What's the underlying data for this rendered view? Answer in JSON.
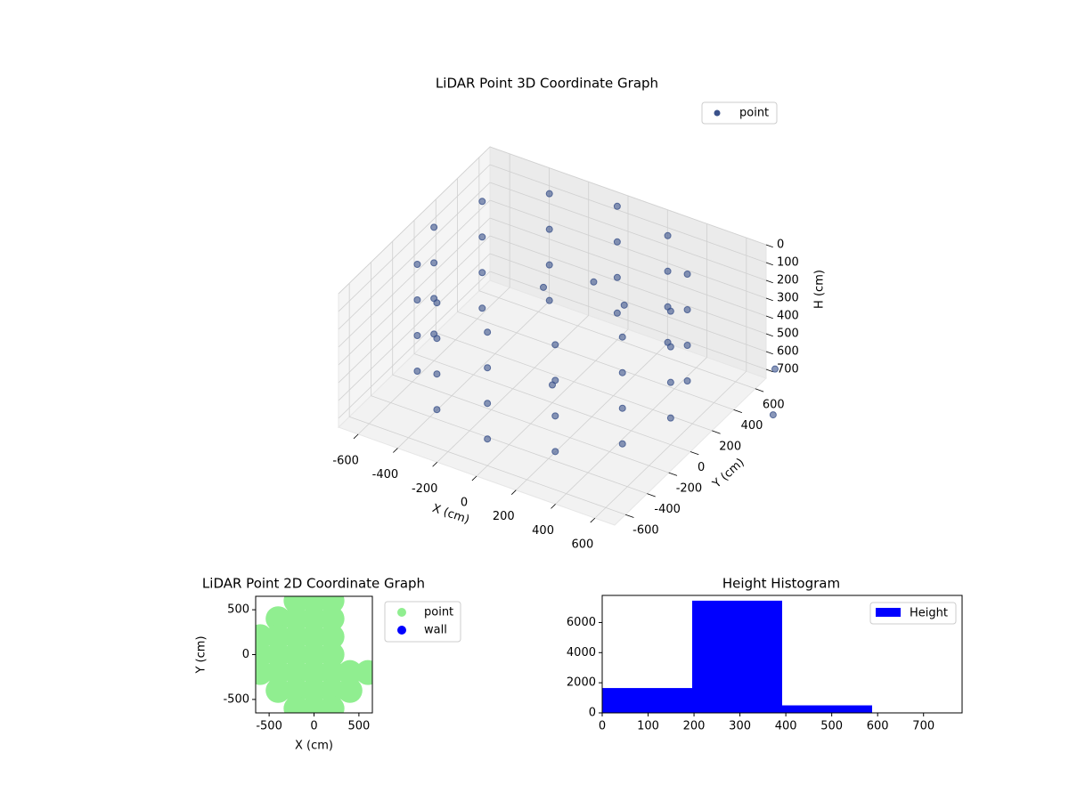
{
  "chart_data": [
    {
      "type": "scatter3d",
      "title": "LiDAR Point 3D Coordinate Graph",
      "xlabel": "X (cm)",
      "ylabel": "Y (cm)",
      "zlabel": "H (cm)",
      "series": [
        {
          "name": "point",
          "color": "#3b528b",
          "x": [
            600,
            520,
            300,
            0,
            -300,
            -520,
            -600,
            -520,
            -300,
            0,
            300,
            520,
            600,
            520,
            300,
            0,
            -300,
            -520,
            -600,
            -520,
            -300,
            0,
            300,
            520,
            600,
            520,
            300,
            0,
            -300,
            -520,
            -600,
            -520,
            -300,
            0,
            300,
            520,
            600,
            520,
            300,
            0,
            -300,
            -520,
            -600,
            -520,
            -300,
            0,
            300,
            520,
            0,
            100,
            -100,
            200,
            800,
            900
          ],
          "y": [
            0,
            300,
            520,
            600,
            520,
            300,
            0,
            -300,
            -520,
            -600,
            -520,
            -300,
            0,
            300,
            520,
            600,
            520,
            300,
            0,
            -300,
            -520,
            -600,
            -520,
            -300,
            0,
            300,
            520,
            600,
            520,
            300,
            0,
            -300,
            -520,
            -600,
            -520,
            -300,
            0,
            300,
            520,
            600,
            520,
            300,
            0,
            -300,
            -520,
            -600,
            -520,
            -300,
            0,
            200,
            100,
            300,
            600,
            400
          ],
          "z": [
            0,
            0,
            0,
            0,
            0,
            0,
            0,
            0,
            0,
            0,
            0,
            0,
            200,
            200,
            200,
            200,
            200,
            200,
            200,
            200,
            200,
            200,
            200,
            200,
            400,
            400,
            400,
            400,
            400,
            400,
            400,
            400,
            400,
            400,
            400,
            400,
            600,
            600,
            600,
            600,
            600,
            600,
            600,
            600,
            600,
            600,
            600,
            600,
            650,
            150,
            200,
            300,
            600,
            700
          ]
        }
      ],
      "xlim": [
        -700,
        700
      ],
      "ylim": [
        -700,
        700
      ],
      "zlim": [
        750,
        0
      ],
      "xticks": [
        -600,
        -400,
        -200,
        0,
        200,
        400,
        600
      ],
      "yticks": [
        -600,
        -400,
        -200,
        0,
        200,
        400,
        600
      ],
      "zticks": [
        0,
        100,
        200,
        300,
        400,
        500,
        600,
        700
      ],
      "legend": "upper right"
    },
    {
      "type": "scatter",
      "title": "LiDAR Point 2D Coordinate Graph",
      "xlabel": "X (cm)",
      "ylabel": "Y (cm)",
      "series": [
        {
          "name": "point",
          "color": "#90ee90",
          "x": [
            -200,
            0,
            200,
            -400,
            -200,
            0,
            200,
            -600,
            -400,
            -200,
            0,
            200,
            -600,
            -400,
            -200,
            0,
            200,
            -600,
            -400,
            -200,
            0,
            200,
            400,
            600,
            -400,
            -200,
            0,
            200,
            400,
            -200,
            0,
            200
          ],
          "y": [
            600,
            600,
            600,
            400,
            400,
            400,
            400,
            200,
            200,
            200,
            200,
            200,
            0,
            0,
            0,
            0,
            0,
            -200,
            -200,
            -200,
            -200,
            -200,
            -200,
            -200,
            -400,
            -400,
            -400,
            -400,
            -400,
            -600,
            -600,
            -600
          ]
        },
        {
          "name": "wall",
          "color": "#0000ff",
          "x": [],
          "y": []
        }
      ],
      "xlim": [
        -650,
        650
      ],
      "ylim": [
        -650,
        650
      ],
      "xticks": [
        -500,
        0,
        500
      ],
      "yticks": [
        -500,
        0,
        500
      ],
      "legend": "outside right"
    },
    {
      "type": "histogram",
      "title": "Height Histogram",
      "name": "Height",
      "color": "#0000ff",
      "bins": [
        0,
        196,
        392,
        588,
        784
      ],
      "counts": [
        1650,
        7450,
        500,
        0
      ],
      "xlim": [
        0,
        784
      ],
      "ylim": [
        0,
        7800
      ],
      "xticks": [
        0,
        100,
        200,
        300,
        400,
        500,
        600,
        700
      ],
      "yticks": [
        0,
        2000,
        4000,
        6000
      ],
      "legend": "upper right"
    }
  ]
}
